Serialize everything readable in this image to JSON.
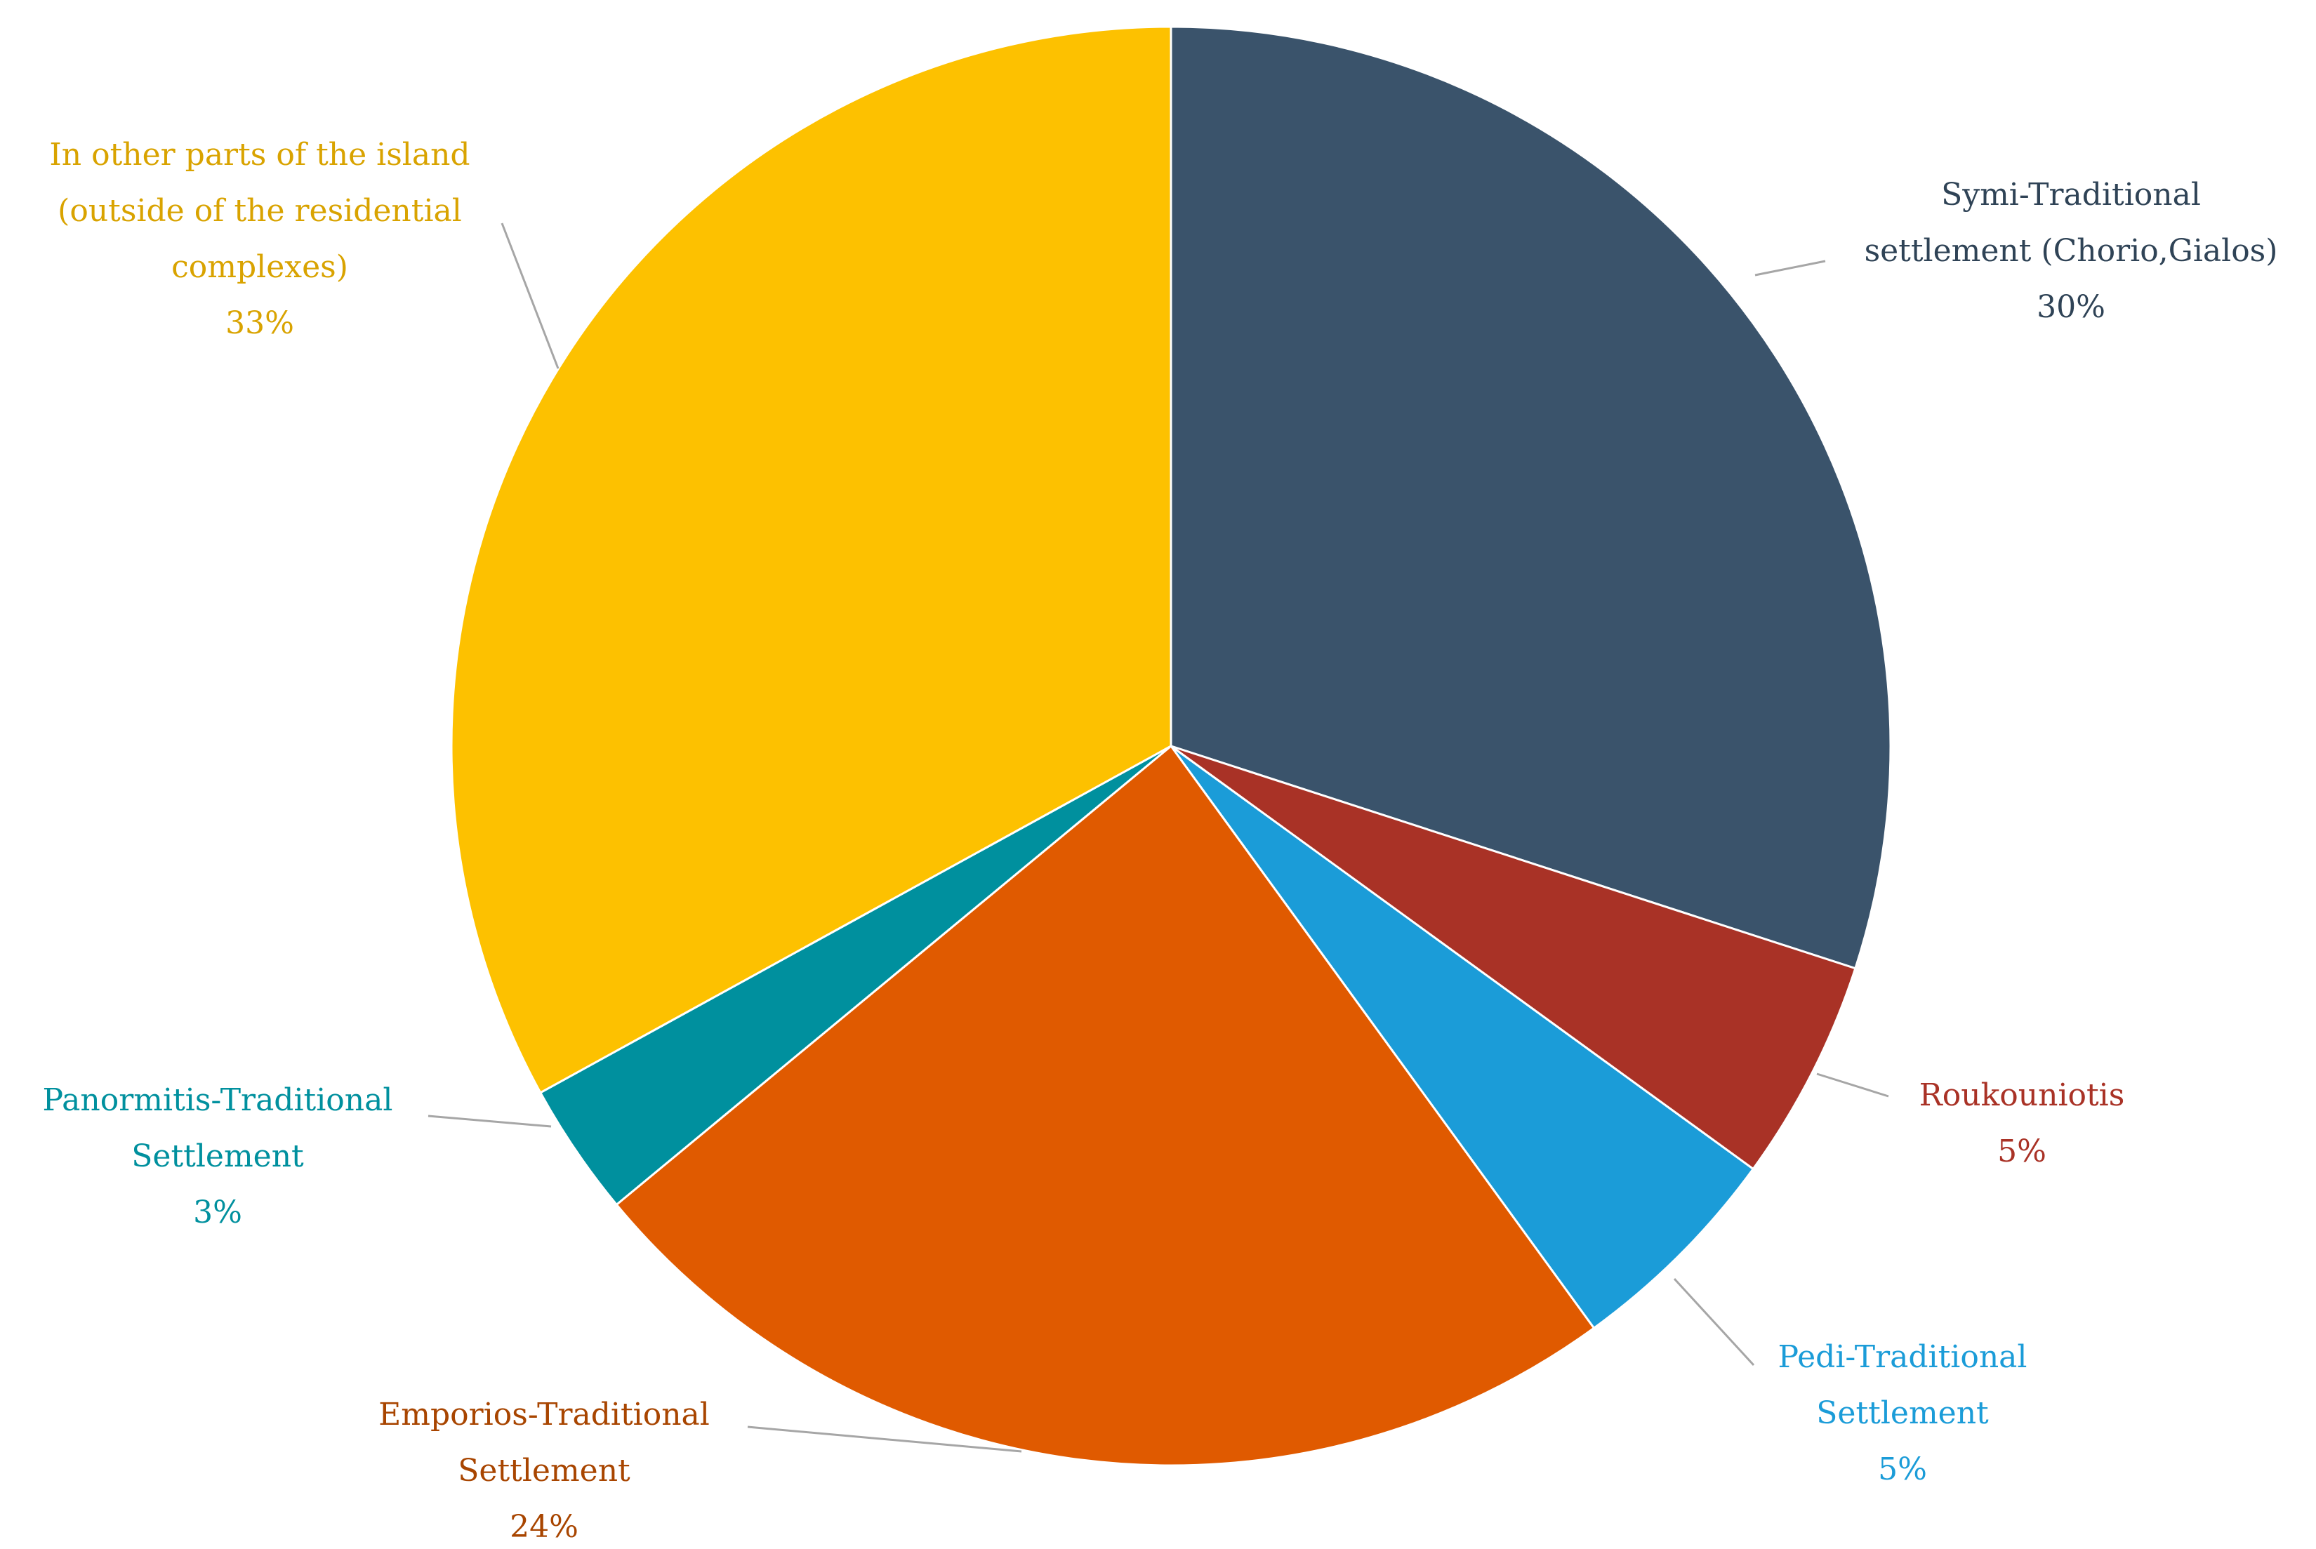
{
  "chart_data": {
    "type": "pie",
    "title": "",
    "slices": [
      {
        "label": "Symi-Traditional settlement (Chorio,Gialos)",
        "lines": [
          "Symi-Traditional",
          "settlement (Chorio,Gialos)"
        ],
        "value": 30,
        "pct_label": "30%",
        "color": "#3a536b"
      },
      {
        "label": "Roukouniotis",
        "lines": [
          "Roukouniotis"
        ],
        "value": 5,
        "pct_label": "5%",
        "color": "#a93226"
      },
      {
        "label": "Pedi-Traditional Settlement",
        "lines": [
          "Pedi-Traditional",
          "Settlement"
        ],
        "value": 5,
        "pct_label": "5%",
        "color": "#1b9cd8"
      },
      {
        "label": "Emporios-Traditional Settlement",
        "lines": [
          "Emporios-Traditional",
          "Settlement"
        ],
        "value": 24,
        "pct_label": "24%",
        "color": "#e05a00"
      },
      {
        "label": "Panormitis-Traditional Settlement",
        "lines": [
          "Panormitis-Traditional",
          "Settlement"
        ],
        "value": 3,
        "pct_label": "3%",
        "color": "#00909e"
      },
      {
        "label": "In other parts of the island (outside of the residential complexes)",
        "lines": [
          "In other parts of the island",
          "(outside of the residential",
          "complexes)"
        ],
        "value": 33,
        "pct_label": "33%",
        "color": "#fdc100"
      }
    ],
    "label_colors": [
      "#2f4356",
      "#a93226",
      "#1b9cd8",
      "#a84500",
      "#00909e",
      "#d9a300"
    ],
    "legend": "none",
    "start_angle_deg": 0,
    "direction": "clockwise"
  }
}
